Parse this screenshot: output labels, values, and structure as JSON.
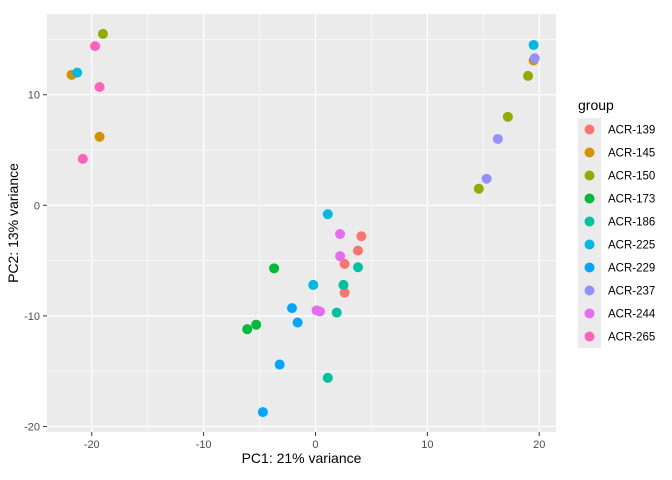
{
  "chart_data": {
    "type": "scatter",
    "title": "",
    "xlabel": "PC1: 21% variance",
    "ylabel": "PC2: 13% variance",
    "xlim": [
      -24.0,
      21.5
    ],
    "ylim": [
      -20.5,
      17.3
    ],
    "x_ticks": [
      -20,
      -10,
      0,
      10,
      20
    ],
    "y_ticks": [
      -20,
      -10,
      0,
      10
    ],
    "grid": true,
    "legend": {
      "title": "group",
      "position": "right"
    },
    "series": [
      {
        "name": "ACR-139",
        "color": "#F8766D",
        "points": [
          [
            4.1,
            -2.8
          ],
          [
            3.8,
            -4.1
          ],
          [
            2.6,
            -5.3
          ],
          [
            2.6,
            -7.9
          ]
        ]
      },
      {
        "name": "ACR-145",
        "color": "#D39200",
        "points": [
          [
            -21.8,
            11.8
          ],
          [
            -19.3,
            6.2
          ],
          [
            19.5,
            13.1
          ]
        ]
      },
      {
        "name": "ACR-150",
        "color": "#93AA00",
        "points": [
          [
            -19.0,
            15.5
          ],
          [
            19.0,
            11.7
          ],
          [
            17.2,
            8.0
          ],
          [
            14.6,
            1.5
          ]
        ]
      },
      {
        "name": "ACR-173",
        "color": "#00BA38",
        "points": [
          [
            -3.7,
            -5.7
          ],
          [
            -5.3,
            -10.8
          ],
          [
            -6.1,
            -11.2
          ]
        ]
      },
      {
        "name": "ACR-186",
        "color": "#00C19F",
        "points": [
          [
            3.8,
            -5.6
          ],
          [
            2.5,
            -7.2
          ],
          [
            1.9,
            -9.7
          ],
          [
            1.1,
            -15.6
          ]
        ]
      },
      {
        "name": "ACR-225",
        "color": "#00B9E3",
        "points": [
          [
            -21.3,
            12.0
          ],
          [
            19.5,
            14.5
          ],
          [
            1.1,
            -0.8
          ],
          [
            -0.2,
            -7.2
          ]
        ]
      },
      {
        "name": "ACR-229",
        "color": "#00A5FF",
        "points": [
          [
            -2.1,
            -9.3
          ],
          [
            -1.6,
            -10.6
          ],
          [
            -3.2,
            -14.4
          ],
          [
            -4.7,
            -18.7
          ]
        ]
      },
      {
        "name": "ACR-237",
        "color": "#9590FF",
        "points": [
          [
            19.6,
            13.3
          ],
          [
            16.3,
            6.0
          ],
          [
            15.3,
            2.4
          ]
        ]
      },
      {
        "name": "ACR-244",
        "color": "#E76BF3",
        "points": [
          [
            2.2,
            -2.6
          ],
          [
            2.2,
            -4.6
          ],
          [
            0.1,
            -9.5
          ],
          [
            0.4,
            -9.6
          ]
        ]
      },
      {
        "name": "ACR-265",
        "color": "#FF62BC",
        "points": [
          [
            -19.7,
            14.4
          ],
          [
            -19.3,
            10.7
          ],
          [
            -20.8,
            4.2
          ]
        ]
      }
    ]
  }
}
